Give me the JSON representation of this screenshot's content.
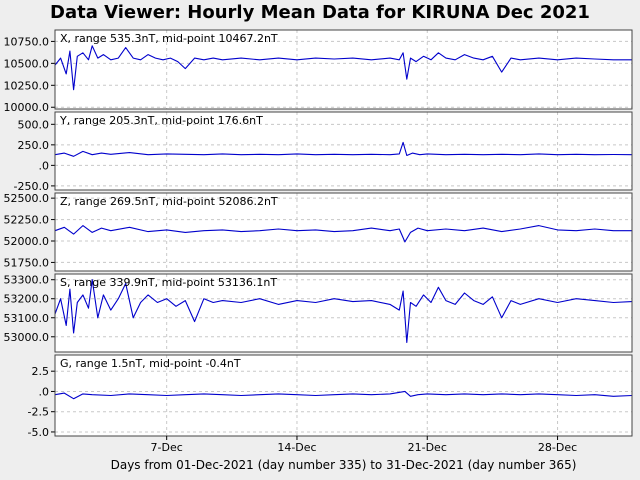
{
  "title": "Data Viewer:  Hourly Mean Data for KIRUNA Dec 2021",
  "colors": {
    "line": "#0000cc",
    "background": "#eeeeee",
    "plot_bg": "#ffffff",
    "grid": "#c8c8c8"
  },
  "chart_data": {
    "type": "line",
    "xlabel": "Days from 01-Dec-2021 (day number 335) to 31-Dec-2021 (day number 365)",
    "xlim": [
      1,
      32
    ],
    "x_ticks": [
      {
        "day": 7,
        "label": "7-Dec"
      },
      {
        "day": 14,
        "label": "14-Dec"
      },
      {
        "day": 21,
        "label": "21-Dec"
      },
      {
        "day": 28,
        "label": "28-Dec"
      }
    ],
    "grid": true,
    "panels": [
      {
        "label": "X, range 535.3nT, mid-point 10467.2nT",
        "ylim": [
          9980,
          10880
        ],
        "yticks": [
          {
            "v": 10000,
            "label": "10000.0"
          },
          {
            "v": 10250,
            "label": "10250.0"
          },
          {
            "v": 10500,
            "label": "10500.0"
          },
          {
            "v": 10750,
            "label": "10750.0"
          }
        ],
        "series": {
          "x": [
            1,
            1.3,
            1.6,
            1.8,
            2.0,
            2.2,
            2.5,
            2.8,
            3.0,
            3.3,
            3.6,
            4.0,
            4.4,
            4.8,
            5.2,
            5.6,
            6.0,
            6.4,
            6.8,
            7.2,
            7.6,
            8.0,
            8.5,
            9,
            9.5,
            10,
            11,
            12,
            13,
            14,
            15,
            16,
            17,
            18,
            19,
            19.5,
            19.7,
            19.9,
            20.1,
            20.4,
            20.8,
            21.2,
            21.6,
            22,
            22.5,
            23,
            23.5,
            24,
            24.5,
            25,
            25.5,
            26,
            27,
            28,
            29,
            30,
            31,
            32
          ],
          "values": [
            10480,
            10560,
            10380,
            10640,
            10200,
            10580,
            10620,
            10540,
            10700,
            10560,
            10600,
            10540,
            10560,
            10680,
            10560,
            10540,
            10600,
            10560,
            10540,
            10560,
            10520,
            10440,
            10560,
            10540,
            10560,
            10540,
            10560,
            10540,
            10560,
            10540,
            10560,
            10550,
            10560,
            10540,
            10560,
            10540,
            10620,
            10320,
            10560,
            10520,
            10580,
            10540,
            10620,
            10560,
            10540,
            10600,
            10560,
            10540,
            10580,
            10400,
            10560,
            10540,
            10560,
            10540,
            10560,
            10550,
            10540,
            10540
          ]
        }
      },
      {
        "label": "Y, range 205.3nT, mid-point 176.6nT",
        "ylim": [
          -300,
          650
        ],
        "yticks": [
          {
            "v": -250,
            "label": "-250.0"
          },
          {
            "v": 0,
            "label": ".0"
          },
          {
            "v": 250,
            "label": "250.0"
          },
          {
            "v": 500,
            "label": "500.0"
          }
        ],
        "series": {
          "x": [
            1,
            1.5,
            2,
            2.5,
            3,
            3.5,
            4,
            5,
            6,
            7,
            8,
            9,
            10,
            11,
            12,
            13,
            14,
            15,
            16,
            17,
            18,
            19,
            19.5,
            19.7,
            19.9,
            20.2,
            20.6,
            21,
            22,
            23,
            24,
            25,
            26,
            27,
            28,
            29,
            30,
            31,
            32
          ],
          "values": [
            130,
            150,
            110,
            170,
            130,
            150,
            135,
            155,
            130,
            140,
            135,
            130,
            140,
            130,
            135,
            130,
            140,
            130,
            135,
            130,
            135,
            130,
            140,
            280,
            120,
            150,
            130,
            140,
            130,
            135,
            130,
            135,
            130,
            140,
            130,
            135,
            130,
            132,
            130
          ]
        }
      },
      {
        "label": "Z, range 269.5nT, mid-point 52086.2nT",
        "ylim": [
          51650,
          52560
        ],
        "yticks": [
          {
            "v": 51750,
            "label": "51750.0"
          },
          {
            "v": 52000,
            "label": "52000.0"
          },
          {
            "v": 52250,
            "label": "52250.0"
          },
          {
            "v": 52500,
            "label": "52500.0"
          }
        ],
        "series": {
          "x": [
            1,
            1.5,
            2,
            2.5,
            3,
            3.5,
            4,
            5,
            6,
            7,
            8,
            9,
            10,
            11,
            12,
            13,
            14,
            15,
            16,
            17,
            18,
            19,
            19.5,
            19.8,
            20.1,
            20.5,
            21,
            22,
            23,
            24,
            25,
            26,
            27,
            28,
            29,
            30,
            31,
            32
          ],
          "values": [
            52120,
            52160,
            52080,
            52180,
            52100,
            52150,
            52120,
            52160,
            52110,
            52130,
            52100,
            52120,
            52130,
            52110,
            52120,
            52140,
            52120,
            52130,
            52110,
            52120,
            52150,
            52120,
            52140,
            51990,
            52100,
            52150,
            52120,
            52140,
            52120,
            52150,
            52110,
            52140,
            52180,
            52130,
            52120,
            52140,
            52120,
            52120
          ]
        }
      },
      {
        "label": "S, range 339.9nT, mid-point 53136.1nT",
        "ylim": [
          52920,
          53330
        ],
        "yticks": [
          {
            "v": 53000,
            "label": "53000.0"
          },
          {
            "v": 53100,
            "label": "53100.0"
          },
          {
            "v": 53200,
            "label": "53200.0"
          },
          {
            "v": 53300,
            "label": "53300.0"
          }
        ],
        "series": {
          "x": [
            1,
            1.3,
            1.6,
            1.8,
            2.0,
            2.2,
            2.5,
            2.8,
            3.0,
            3.3,
            3.6,
            4.0,
            4.4,
            4.8,
            5.2,
            5.6,
            6.0,
            6.5,
            7,
            7.5,
            8,
            8.5,
            9,
            9.5,
            10,
            11,
            12,
            13,
            14,
            15,
            16,
            17,
            18,
            19,
            19.5,
            19.7,
            19.9,
            20.1,
            20.4,
            20.8,
            21.2,
            21.6,
            22,
            22.5,
            23,
            23.5,
            24,
            24.5,
            25,
            25.5,
            26,
            27,
            28,
            29,
            30,
            31,
            32
          ],
          "values": [
            53120,
            53200,
            53060,
            53250,
            53020,
            53180,
            53220,
            53150,
            53300,
            53100,
            53220,
            53140,
            53200,
            53280,
            53100,
            53180,
            53220,
            53180,
            53200,
            53160,
            53190,
            53080,
            53200,
            53180,
            53190,
            53180,
            53200,
            53170,
            53190,
            53180,
            53200,
            53185,
            53190,
            53170,
            53140,
            53240,
            52970,
            53180,
            53160,
            53220,
            53180,
            53260,
            53190,
            53170,
            53230,
            53190,
            53170,
            53210,
            53100,
            53190,
            53170,
            53200,
            53180,
            53200,
            53190,
            53180,
            53185
          ]
        }
      },
      {
        "label": "G, range 1.5nT, mid-point -0.4nT",
        "ylim": [
          -5.5,
          4.5
        ],
        "yticks": [
          {
            "v": -5,
            "label": "-5.0"
          },
          {
            "v": -2.5,
            "label": "-2.5"
          },
          {
            "v": 0,
            "label": ".0"
          },
          {
            "v": 2.5,
            "label": "2.5"
          }
        ],
        "series": {
          "x": [
            1,
            1.5,
            2,
            2.5,
            3,
            4,
            5,
            6,
            7,
            8,
            9,
            10,
            11,
            12,
            13,
            14,
            15,
            16,
            17,
            18,
            19,
            19.8,
            20.1,
            20.5,
            21,
            22,
            23,
            24,
            25,
            26,
            27,
            28,
            29,
            30,
            31,
            32
          ],
          "values": [
            -0.4,
            -0.2,
            -0.9,
            -0.3,
            -0.4,
            -0.5,
            -0.3,
            -0.4,
            -0.5,
            -0.4,
            -0.3,
            -0.4,
            -0.5,
            -0.4,
            -0.3,
            -0.4,
            -0.5,
            -0.4,
            -0.3,
            -0.4,
            -0.3,
            0.0,
            -0.6,
            -0.4,
            -0.3,
            -0.4,
            -0.3,
            -0.4,
            -0.3,
            -0.4,
            -0.3,
            -0.4,
            -0.5,
            -0.4,
            -0.6,
            -0.5
          ]
        }
      }
    ]
  }
}
